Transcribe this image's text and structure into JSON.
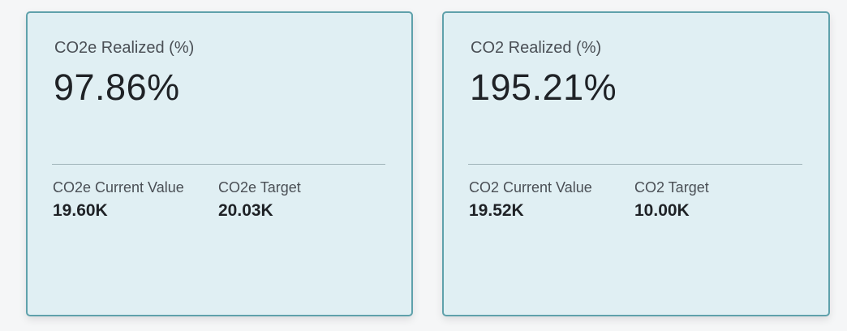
{
  "cards": [
    {
      "title": "CO2e Realized (%)",
      "value": "97.86%",
      "current_label": "CO2e Current Value",
      "current_value": "19.60K",
      "target_label": "CO2e Target",
      "target_value": "20.03K"
    },
    {
      "title": "CO2 Realized (%)",
      "value": "195.21%",
      "current_label": "CO2 Current Value",
      "current_value": "19.52K",
      "target_label": "CO2 Target",
      "target_value": "10.00K"
    }
  ],
  "colors": {
    "card_background": "#e0eff3",
    "card_border": "#5fa1ab",
    "divider": "#9fb3b8"
  }
}
